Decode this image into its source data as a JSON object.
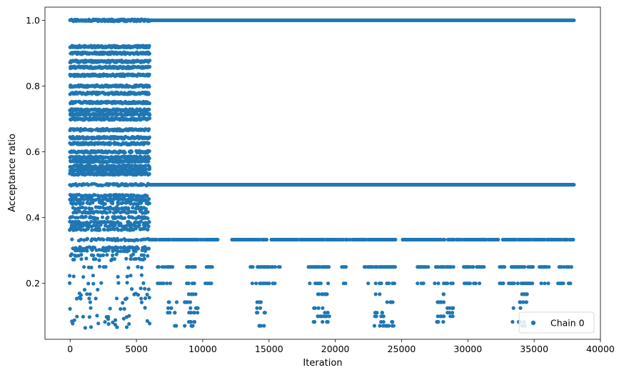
{
  "chart_data": {
    "type": "scatter",
    "xlabel": "Iteration",
    "ylabel": "Acceptance ratio",
    "xlim": [
      -1900,
      40000
    ],
    "ylim": [
      0.03,
      1.04
    ],
    "xticks": [
      0,
      5000,
      10000,
      15000,
      20000,
      25000,
      30000,
      35000,
      40000
    ],
    "yticks": [
      0.2,
      0.4,
      0.6,
      0.8,
      1.0
    ],
    "xtick_labels": [
      "0",
      "5000",
      "10000",
      "15000",
      "20000",
      "25000",
      "30000",
      "35000",
      "40000"
    ],
    "ytick_labels": [
      "0.2",
      "0.4",
      "0.6",
      "0.8",
      "1.0"
    ],
    "grid": false,
    "legend_position": "bottom-right",
    "series": [
      {
        "name": "Chain 0",
        "color": "#1f77b4",
        "marker": "circle",
        "segments": [
          {
            "x_range": [
              0,
              6000
            ],
            "levels": [
              1.0,
              0.92,
              0.9,
              0.875,
              0.857,
              0.833,
              0.8,
              0.778,
              0.75,
              0.727,
              0.714,
              0.7,
              0.667,
              0.643,
              0.625,
              0.6,
              0.583,
              0.571,
              0.556,
              0.545,
              0.533,
              0.5,
              0.467,
              0.455,
              0.444,
              0.429,
              0.417,
              0.4,
              0.385,
              0.375,
              0.364,
              0.333,
              0.308,
              0.3,
              0.286,
              0.273,
              0.25,
              0.222,
              0.2,
              0.182,
              0.167,
              0.154,
              0.143,
              0.125,
              0.1,
              0.091,
              0.083,
              0.077,
              0.067
            ],
            "density": "high"
          },
          {
            "x_range": [
              6000,
              38000
            ],
            "levels": [
              1.0,
              0.5
            ],
            "density": "continuous"
          },
          {
            "x_range": [
              6000,
              38000
            ],
            "levels": [
              0.333
            ],
            "density": "dense-with-gaps"
          },
          {
            "x_range": [
              6000,
              38000
            ],
            "levels": [
              0.25,
              0.2
            ],
            "density": "clustered"
          },
          {
            "x_range": [
              6000,
              38000
            ],
            "levels": [
              0.167,
              0.143,
              0.125,
              0.111,
              0.1,
              0.083,
              0.071
            ],
            "density": "sparse"
          }
        ]
      }
    ]
  }
}
